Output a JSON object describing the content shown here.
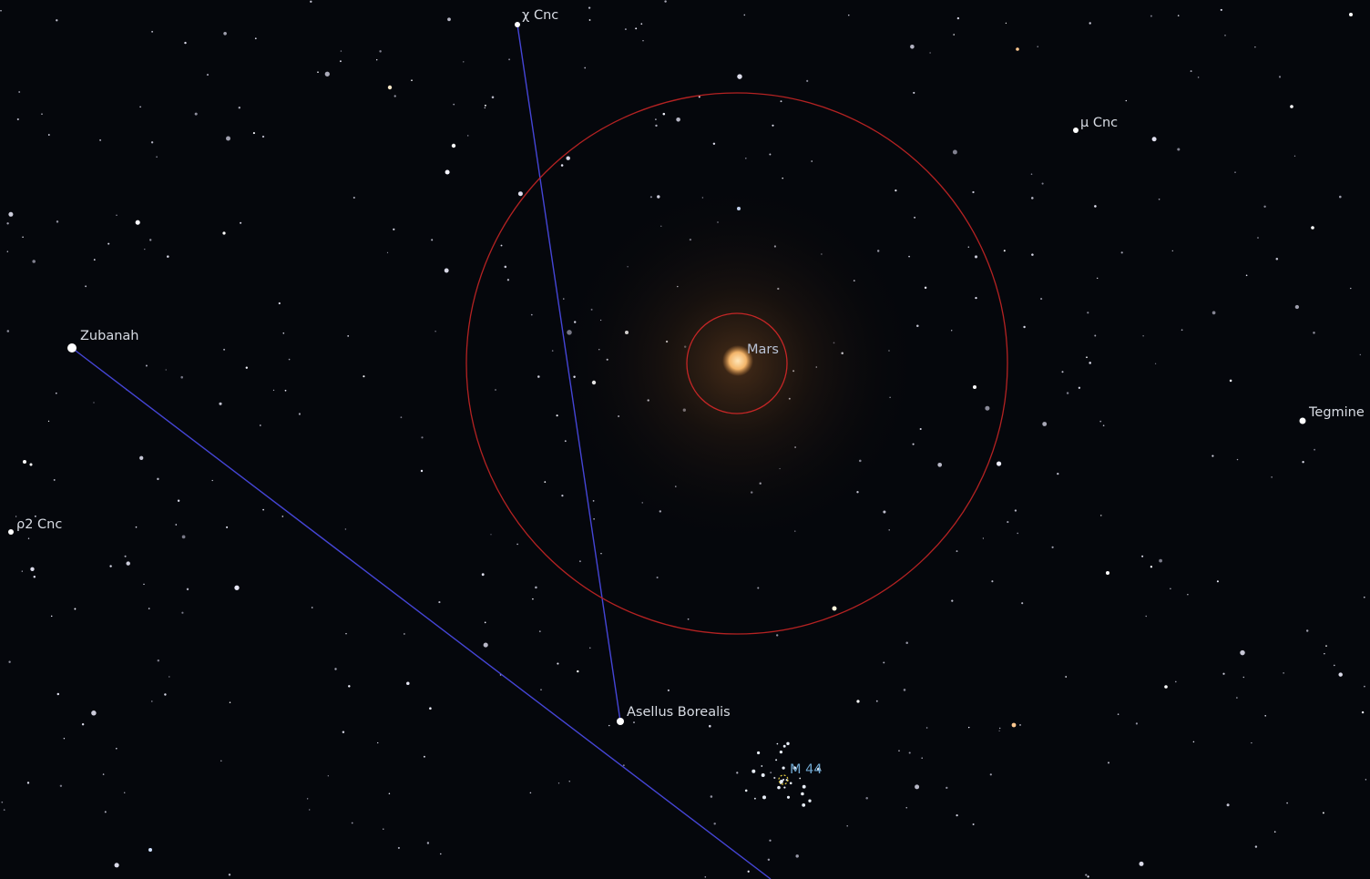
{
  "labels": {
    "chi_cnc": "χ Cnc",
    "mu_cnc": "μ Cnc",
    "zubanah": "Zubanah",
    "mars": "Mars",
    "tegmine": "Tegmine",
    "rho2_cnc": "ρ2 Cnc",
    "asellus_borealis": "Asellus Borealis",
    "m44": "M 44"
  }
}
